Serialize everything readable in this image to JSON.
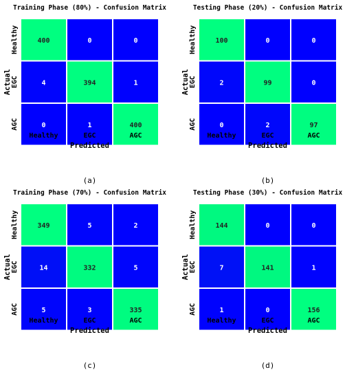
{
  "chart_data": [
    {
      "type": "heatmap",
      "title": "Training Phase (80%) - Confusion Matrix",
      "xlabel": "Predicted",
      "ylabel": "Actual",
      "x_categories": [
        "Healthy",
        "EGC",
        "AGC"
      ],
      "y_categories": [
        "Healthy",
        "EGC",
        "AGC"
      ],
      "values": [
        [
          400,
          0,
          0
        ],
        [
          4,
          394,
          1
        ],
        [
          0,
          1,
          400
        ]
      ],
      "caption": "(a)",
      "colormap": {
        "low": "#0000ff",
        "mid": "#00e080",
        "high": "#00ff80"
      }
    },
    {
      "type": "heatmap",
      "title": "Testing Phase (20%) - Confusion Matrix",
      "xlabel": "Predicted",
      "ylabel": "Actual",
      "x_categories": [
        "Healthy",
        "EGC",
        "AGC"
      ],
      "y_categories": [
        "Healthy",
        "EGC",
        "AGC"
      ],
      "values": [
        [
          100,
          0,
          0
        ],
        [
          2,
          99,
          0
        ],
        [
          0,
          2,
          97
        ]
      ],
      "caption": "(b)",
      "colormap": {
        "low": "#0000ff",
        "mid": "#00e080",
        "high": "#00ff80"
      }
    },
    {
      "type": "heatmap",
      "title": "Training Phase (70%) - Confusion Matrix",
      "xlabel": "Predicted",
      "ylabel": "Actual",
      "x_categories": [
        "Healthy",
        "EGC",
        "AGC"
      ],
      "y_categories": [
        "Healthy",
        "EGC",
        "AGC"
      ],
      "values": [
        [
          349,
          5,
          2
        ],
        [
          14,
          332,
          5
        ],
        [
          5,
          3,
          335
        ]
      ],
      "caption": "(c)",
      "colormap": {
        "low": "#0000ff",
        "mid": "#00e080",
        "high": "#00ff80"
      }
    },
    {
      "type": "heatmap",
      "title": "Testing Phase (30%) - Confusion Matrix",
      "xlabel": "Predicted",
      "ylabel": "Actual",
      "x_categories": [
        "Healthy",
        "EGC",
        "AGC"
      ],
      "y_categories": [
        "Healthy",
        "EGC",
        "AGC"
      ],
      "values": [
        [
          144,
          0,
          0
        ],
        [
          7,
          141,
          1
        ],
        [
          1,
          0,
          156
        ]
      ],
      "caption": "(d)",
      "colormap": {
        "low": "#0000ff",
        "mid": "#00e080",
        "high": "#00ff80"
      }
    }
  ]
}
